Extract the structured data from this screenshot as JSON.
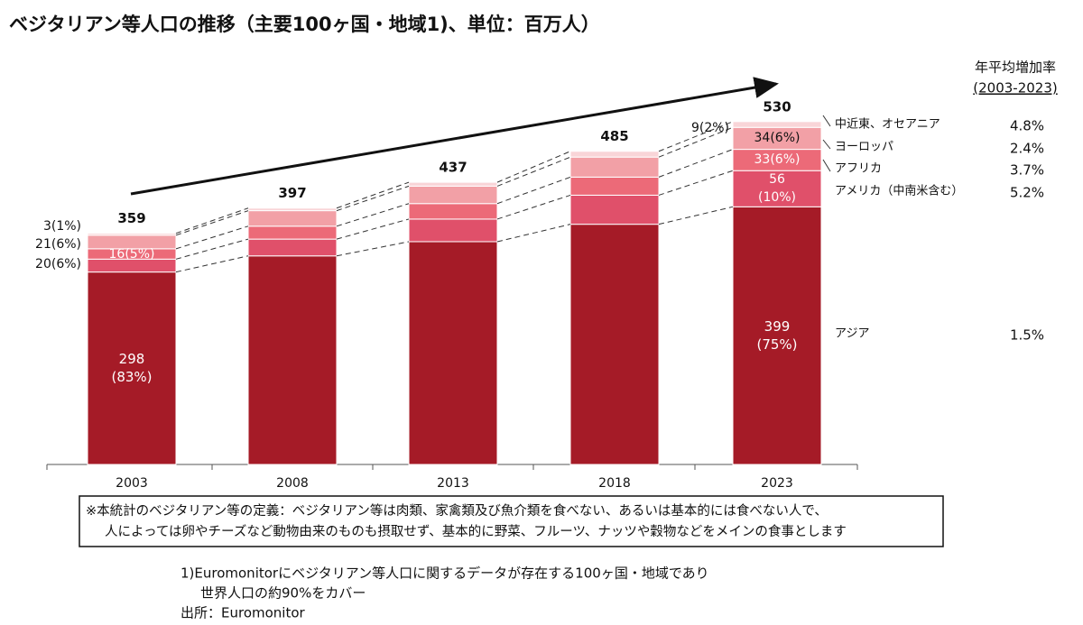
{
  "chart_data": {
    "type": "stacked_bar",
    "title": "ベジタリアン等人口の推移（主要100ヶ国・地域1)、単位：百万人）",
    "categories": [
      "2003",
      "2008",
      "2013",
      "2018",
      "2023"
    ],
    "totals": [
      359,
      397,
      437,
      485,
      530
    ],
    "series": [
      {
        "name": "アジア",
        "color": "#a51b27",
        "values": [
          298,
          323,
          345,
          372,
          399
        ],
        "value_labels": [
          "298\n(83%)",
          null,
          null,
          null,
          "399\n(75%)"
        ],
        "growth": "1.5%"
      },
      {
        "name": "アメリカ（中南米含む）",
        "color": "#e0506a",
        "values": [
          20,
          26,
          35,
          45,
          56
        ],
        "value_labels": [
          "20(6%)",
          null,
          null,
          null,
          "56\n(10%)"
        ],
        "growth": "5.2%"
      },
      {
        "name": "アフリカ",
        "color": "#ec6a78",
        "values": [
          16,
          20,
          24,
          28,
          33
        ],
        "value_labels": [
          "16(5%)",
          null,
          null,
          null,
          "33(6%)"
        ],
        "growth": "3.7%"
      },
      {
        "name": "ヨーロッパ",
        "color": "#f2a0a6",
        "values": [
          21,
          24,
          27,
          31,
          34
        ],
        "value_labels": [
          "21(6%)",
          null,
          null,
          null,
          "34(6%)"
        ],
        "growth": "2.4%"
      },
      {
        "name": "中近東、オセアニア",
        "color": "#f9d5d8",
        "values": [
          3,
          4,
          6,
          9,
          9
        ],
        "value_labels": [
          "3(1%)",
          null,
          null,
          null,
          "9(2%)"
        ],
        "growth": "4.8%"
      }
    ],
    "growth_header": [
      "年平均増加率",
      "(2003-2023)"
    ],
    "definition": [
      "※本統計のベジタリアン等の定義：ベジタリアン等は肉類、家禽類及び魚介類を食べない、あるいは基本的には食べない人で、",
      "人によっては卵やチーズなど動物由来のものも摂取せず、基本的に野菜、フルーツ、ナッツや穀物などをメインの食事とします"
    ],
    "notes": [
      "1)Euromonitorにベジタリアン等人口に関するデータが存在する100ヶ国・地域であり",
      "世界人口の約90%をカバー",
      "出所：Euromonitor"
    ]
  }
}
